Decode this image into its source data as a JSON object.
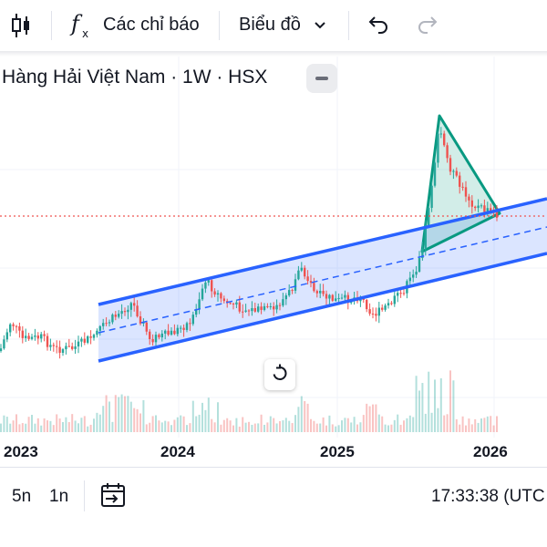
{
  "toolbar": {
    "indicators_label": "Các chỉ báo",
    "chart_type_label": "Biểu đồ"
  },
  "chart": {
    "title": "Hàng Hải Việt Nam · 1W · HSX",
    "x_ticks": [
      "2023",
      "2024",
      "2025",
      "2026"
    ]
  },
  "bottom": {
    "range_5y": "5n",
    "range_1y": "1n",
    "time": "17:33:38 (UTC"
  },
  "colors": {
    "up": "#26a69a",
    "down": "#ef5350",
    "channel": "#2962ff",
    "triangle": "#089981"
  },
  "icons": {
    "candles": "candlestick-icon",
    "fx": "fx-icon",
    "chevron": "chevron-down-icon",
    "undo": "undo-icon",
    "redo": "redo-icon",
    "compare": "date-range-icon",
    "reset": "reset-icon"
  }
}
